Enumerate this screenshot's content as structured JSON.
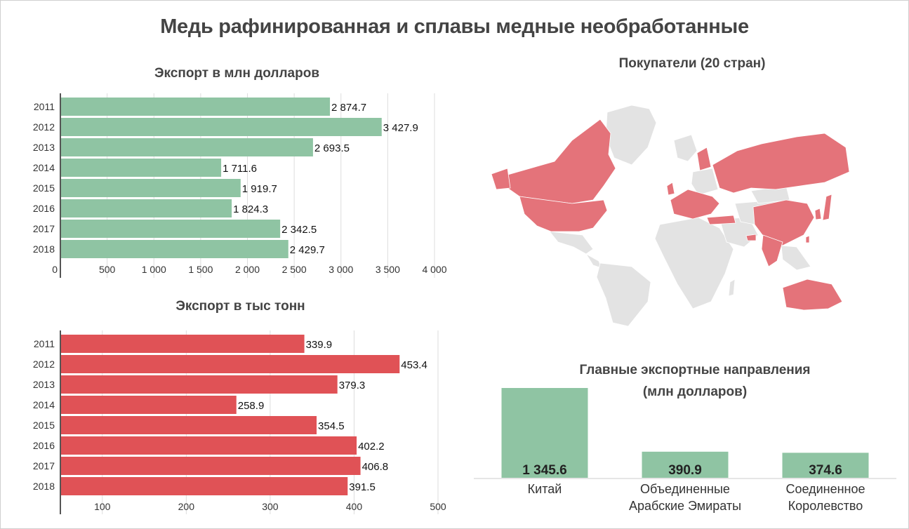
{
  "title": "Медь рафинированная и сплавы медные необработанные",
  "colors": {
    "green": "#8fc4a3",
    "red": "#e05256",
    "map_highlight": "#e4737a",
    "map_base": "#e3e3e3",
    "grid": "#dddddd"
  },
  "chart_data": [
    {
      "type": "bar",
      "orientation": "horizontal",
      "title": "Экспорт в млн долларов",
      "categories": [
        "2011",
        "2012",
        "2013",
        "2014",
        "2015",
        "2016",
        "2017",
        "2018"
      ],
      "values": [
        2874.7,
        3427.9,
        2693.5,
        1711.6,
        1919.7,
        1824.3,
        2342.5,
        2429.7
      ],
      "value_labels": [
        "2 874.7",
        "3 427.9",
        "2 693.5",
        "1 711.6",
        "1 919.7",
        "1 824.3",
        "2 342.5",
        "2 429.7"
      ],
      "xlim": [
        0,
        4000
      ],
      "ticks": [
        0,
        500,
        1000,
        1500,
        2000,
        2500,
        3000,
        3500,
        4000
      ],
      "tick_labels": [
        "0",
        "500",
        "1 000",
        "1 500",
        "2 000",
        "2 500",
        "3 000",
        "3 500",
        "4 000"
      ],
      "color": "#8fc4a3"
    },
    {
      "type": "bar",
      "orientation": "horizontal",
      "title": "Экспорт в тыс тонн",
      "categories": [
        "2011",
        "2012",
        "2013",
        "2014",
        "2015",
        "2016",
        "2017",
        "2018"
      ],
      "values": [
        339.9,
        453.4,
        379.3,
        258.9,
        354.5,
        402.2,
        406.8,
        391.5
      ],
      "value_labels": [
        "339.9",
        "453.4",
        "379.3",
        "258.9",
        "354.5",
        "402.2",
        "406.8",
        "391.5"
      ],
      "xlim": [
        50,
        500
      ],
      "ticks": [
        100,
        200,
        300,
        400,
        500
      ],
      "tick_labels": [
        "100",
        "200",
        "300",
        "400",
        "500"
      ],
      "color": "#e05256"
    },
    {
      "type": "bar",
      "orientation": "vertical",
      "title_line1": "Главные экспортные направления",
      "title_line2": "(млн долларов)",
      "categories": [
        [
          "Китай"
        ],
        [
          "Объединенные",
          "Арабские Эмираты"
        ],
        [
          "Соединенное",
          "Королевство"
        ]
      ],
      "values": [
        1345.6,
        390.9,
        374.6
      ],
      "value_labels": [
        "1 345.6",
        "390.9",
        "374.6"
      ],
      "color": "#8fc4a3"
    }
  ],
  "map": {
    "title": "Покупатели (20 стран)"
  }
}
